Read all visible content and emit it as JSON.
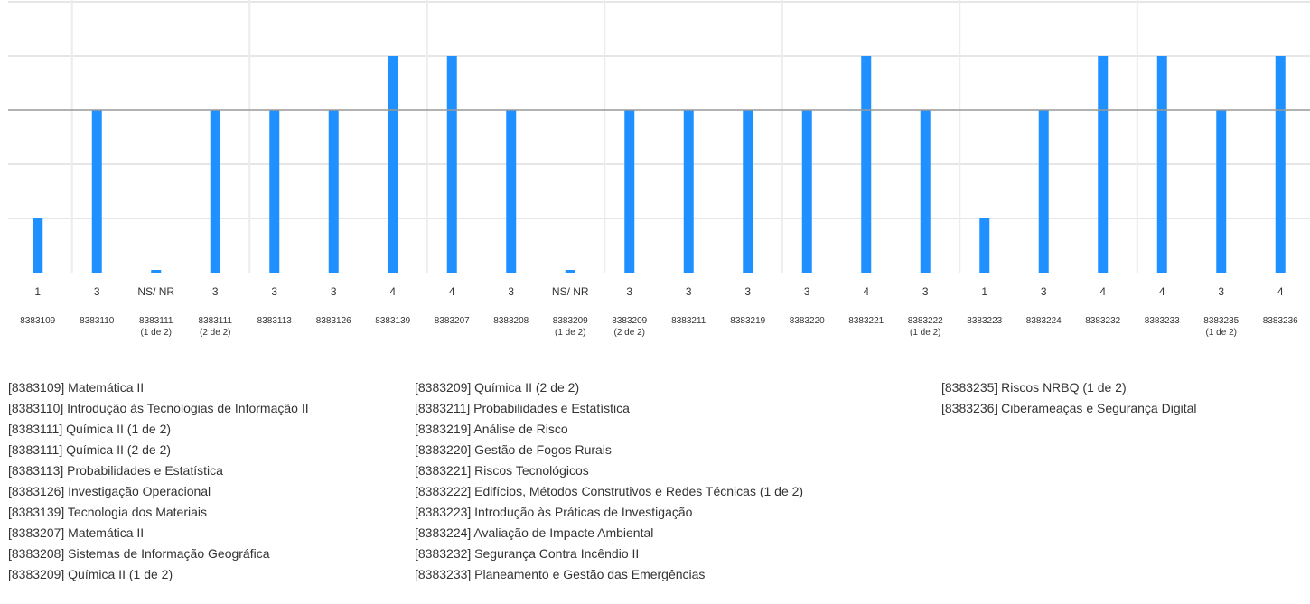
{
  "chart_data": {
    "type": "bar",
    "bar_color": "#1e90ff",
    "grid": true,
    "ylim": [
      0,
      5
    ],
    "reference_line": 3,
    "categories": [
      {
        "code": "8383109",
        "sub": "",
        "value": 1,
        "label": "1"
      },
      {
        "code": "8383110",
        "sub": "",
        "value": 3,
        "label": "3"
      },
      {
        "code": "8383111",
        "sub": "(1 de 2)",
        "value": 0,
        "label": "NS/ NR"
      },
      {
        "code": "8383111",
        "sub": "(2 de 2)",
        "value": 3,
        "label": "3"
      },
      {
        "code": "8383113",
        "sub": "",
        "value": 3,
        "label": "3"
      },
      {
        "code": "8383126",
        "sub": "",
        "value": 3,
        "label": "3"
      },
      {
        "code": "8383139",
        "sub": "",
        "value": 4,
        "label": "4"
      },
      {
        "code": "8383207",
        "sub": "",
        "value": 4,
        "label": "4"
      },
      {
        "code": "8383208",
        "sub": "",
        "value": 3,
        "label": "3"
      },
      {
        "code": "8383209",
        "sub": "(1 de 2)",
        "value": 0,
        "label": "NS/ NR"
      },
      {
        "code": "8383209",
        "sub": "(2 de 2)",
        "value": 3,
        "label": "3"
      },
      {
        "code": "8383211",
        "sub": "",
        "value": 3,
        "label": "3"
      },
      {
        "code": "8383219",
        "sub": "",
        "value": 3,
        "label": "3"
      },
      {
        "code": "8383220",
        "sub": "",
        "value": 3,
        "label": "3"
      },
      {
        "code": "8383221",
        "sub": "",
        "value": 4,
        "label": "4"
      },
      {
        "code": "8383222",
        "sub": "(1 de 2)",
        "value": 3,
        "label": "3"
      },
      {
        "code": "8383223",
        "sub": "",
        "value": 1,
        "label": "1"
      },
      {
        "code": "8383224",
        "sub": "",
        "value": 3,
        "label": "3"
      },
      {
        "code": "8383232",
        "sub": "",
        "value": 4,
        "label": "4"
      },
      {
        "code": "8383233",
        "sub": "",
        "value": 4,
        "label": "4"
      },
      {
        "code": "8383235",
        "sub": "(1 de 2)",
        "value": 3,
        "label": "3"
      },
      {
        "code": "8383236",
        "sub": "",
        "value": 4,
        "label": "4"
      }
    ]
  },
  "legend": {
    "col1": [
      "[8383109] Matemática II",
      "[8383110] Introdução às Tecnologias de Informação II",
      "[8383111] Química II (1 de 2)",
      "[8383111] Química II (2 de 2)",
      "[8383113] Probabilidades e Estatística",
      "[8383126] Investigação Operacional",
      "[8383139] Tecnologia dos Materiais",
      "[8383207] Matemática II",
      "[8383208] Sistemas de Informação Geográfica",
      "[8383209] Química II (1 de 2)"
    ],
    "col2": [
      "[8383209] Química II (2 de 2)",
      "[8383211] Probabilidades e Estatística",
      "[8383219] Análise de Risco",
      "[8383220] Gestão de Fogos Rurais",
      "[8383221] Riscos Tecnológicos",
      "[8383222] Edifícios, Métodos Construtivos e Redes Técnicas (1 de 2)",
      "[8383223] Introdução às Práticas de Investigação",
      "[8383224] Avaliação de Impacte Ambiental",
      "[8383232] Segurança Contra Incêndio II",
      "[8383233] Planeamento e Gestão das Emergências"
    ],
    "col3": [
      "[8383235] Riscos NRBQ (1 de 2)",
      "[8383236] Ciberameaças e Segurança Digital"
    ]
  }
}
